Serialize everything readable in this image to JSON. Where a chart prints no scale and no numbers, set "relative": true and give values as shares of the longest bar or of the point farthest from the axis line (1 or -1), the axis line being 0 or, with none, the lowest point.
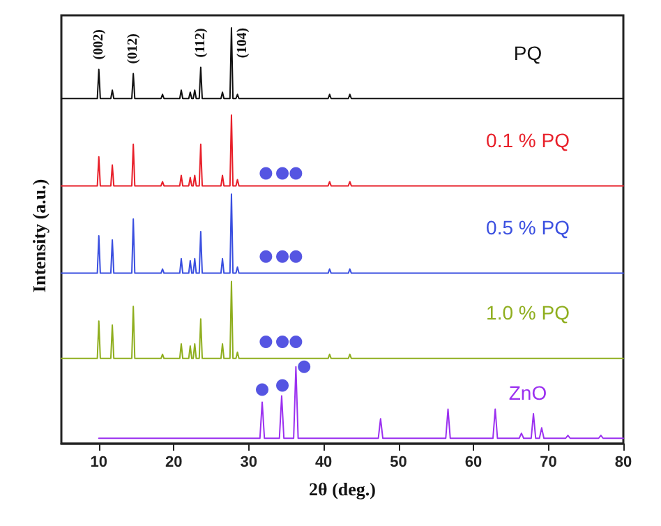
{
  "chart_data": {
    "type": "line",
    "xlabel": "2θ (deg.)",
    "ylabel": "Intensity (a.u.)",
    "relative": true,
    "xlim": [
      5,
      80
    ],
    "xticks": [
      10,
      20,
      30,
      40,
      50,
      60,
      70,
      80
    ],
    "tick_labels": "x",
    "marker": "none",
    "line_style": "solid",
    "annotations": [
      {
        "text": "(002)",
        "x": 10,
        "y": 0.9
      },
      {
        "text": "(012)",
        "x": 14.6,
        "y": 0.89
      },
      {
        "text": "(112)",
        "x": 23.6,
        "y": 0.905
      },
      {
        "text": "(104)",
        "x": 27.7,
        "y": 1
      }
    ],
    "series": [
      {
        "name": "PQ",
        "color": "#111111",
        "x": [
          5,
          9.8,
          10,
          10.2,
          11.6,
          11.8,
          12,
          14.4,
          14.6,
          14.8,
          18.3,
          18.5,
          18.7,
          20.8,
          21,
          21.2,
          22,
          22.2,
          22.4,
          22.6,
          22.8,
          23,
          23.4,
          23.6,
          23.8,
          26.3,
          26.5,
          26.7,
          27.5,
          27.7,
          27.9,
          28.3,
          28.5,
          28.7,
          40.6,
          40.8,
          41,
          43.3,
          43.5,
          43.7,
          80
        ],
        "values": [
          0.83,
          0.83,
          0.9,
          0.83,
          0.83,
          0.85,
          0.83,
          0.83,
          0.89,
          0.83,
          0.83,
          0.84,
          0.83,
          0.83,
          0.85,
          0.83,
          0.83,
          0.845,
          0.83,
          0.83,
          0.85,
          0.83,
          0.83,
          0.905,
          0.83,
          0.83,
          0.845,
          0.83,
          0.83,
          1,
          0.83,
          0.83,
          0.84,
          0.83,
          0.83,
          0.84,
          0.83,
          0.83,
          0.84,
          0.83,
          0.83
        ]
      },
      {
        "name": "0.1 % PQ",
        "color": "#e8202a",
        "x": [
          5,
          9.8,
          10,
          10.2,
          11.6,
          11.8,
          12,
          14.4,
          14.6,
          14.8,
          18.3,
          18.5,
          18.7,
          20.8,
          21,
          21.2,
          22,
          22.2,
          22.4,
          22.6,
          22.8,
          23,
          23.4,
          23.6,
          23.8,
          26.3,
          26.5,
          26.7,
          27.5,
          27.7,
          27.9,
          28.3,
          28.5,
          28.7,
          40.6,
          40.8,
          41,
          43.3,
          43.5,
          43.7,
          80
        ],
        "values": [
          0.62,
          0.62,
          0.69,
          0.62,
          0.62,
          0.67,
          0.62,
          0.62,
          0.72,
          0.62,
          0.62,
          0.63,
          0.62,
          0.62,
          0.645,
          0.62,
          0.62,
          0.64,
          0.62,
          0.62,
          0.645,
          0.62,
          0.62,
          0.72,
          0.62,
          0.62,
          0.645,
          0.62,
          0.62,
          0.79,
          0.62,
          0.62,
          0.635,
          0.62,
          0.62,
          0.63,
          0.62,
          0.62,
          0.63,
          0.62,
          0.62
        ]
      },
      {
        "name": "0.5 % PQ",
        "color": "#3a4fe0",
        "x": [
          5,
          9.8,
          10,
          10.2,
          11.6,
          11.8,
          12,
          14.4,
          14.6,
          14.8,
          18.3,
          18.5,
          18.7,
          20.8,
          21,
          21.2,
          22,
          22.2,
          22.4,
          22.6,
          22.8,
          23,
          23.4,
          23.6,
          23.8,
          26.3,
          26.5,
          26.7,
          27.5,
          27.7,
          27.9,
          28.3,
          28.5,
          28.7,
          40.6,
          40.8,
          41,
          43.3,
          43.5,
          43.7,
          80
        ],
        "values": [
          0.41,
          0.41,
          0.5,
          0.41,
          0.41,
          0.49,
          0.41,
          0.41,
          0.54,
          0.41,
          0.41,
          0.42,
          0.41,
          0.41,
          0.445,
          0.41,
          0.41,
          0.44,
          0.41,
          0.41,
          0.445,
          0.41,
          0.41,
          0.51,
          0.41,
          0.41,
          0.445,
          0.41,
          0.41,
          0.6,
          0.41,
          0.41,
          0.425,
          0.41,
          0.41,
          0.42,
          0.41,
          0.41,
          0.42,
          0.41,
          0.41
        ]
      },
      {
        "name": "1.0 % PQ",
        "color": "#8fae1e",
        "x": [
          5,
          9.8,
          10,
          10.2,
          11.6,
          11.8,
          12,
          14.4,
          14.6,
          14.8,
          18.3,
          18.5,
          18.7,
          20.8,
          21,
          21.2,
          22,
          22.2,
          22.4,
          22.6,
          22.8,
          23,
          23.4,
          23.6,
          23.8,
          26.3,
          26.5,
          26.7,
          27.5,
          27.7,
          27.9,
          28.3,
          28.5,
          28.7,
          40.6,
          40.8,
          41,
          43.3,
          43.5,
          43.7,
          80
        ],
        "values": [
          0.205,
          0.205,
          0.295,
          0.205,
          0.205,
          0.285,
          0.205,
          0.205,
          0.33,
          0.205,
          0.205,
          0.215,
          0.205,
          0.205,
          0.24,
          0.205,
          0.205,
          0.235,
          0.205,
          0.205,
          0.24,
          0.205,
          0.205,
          0.3,
          0.205,
          0.205,
          0.24,
          0.205,
          0.205,
          0.39,
          0.205,
          0.205,
          0.22,
          0.205,
          0.205,
          0.215,
          0.205,
          0.205,
          0.215,
          0.205,
          0.205
        ]
      },
      {
        "name": "ZnO",
        "color": "#9b30f0",
        "x": [
          10,
          31.5,
          31.8,
          32.1,
          34.1,
          34.4,
          34.7,
          36,
          36.3,
          36.6,
          47.3,
          47.6,
          47.9,
          56.3,
          56.6,
          56.9,
          62.6,
          62.9,
          63.2,
          66.1,
          66.4,
          66.7,
          67.7,
          68,
          68.3,
          68.8,
          69.1,
          69.4,
          72.3,
          72.6,
          72.9,
          76.7,
          77,
          77.3,
          80
        ],
        "values": [
          0.013,
          0.013,
          0.1,
          0.013,
          0.013,
          0.115,
          0.013,
          0.013,
          0.185,
          0.013,
          0.013,
          0.06,
          0.013,
          0.013,
          0.083,
          0.013,
          0.013,
          0.083,
          0.013,
          0.013,
          0.025,
          0.013,
          0.013,
          0.072,
          0.013,
          0.013,
          0.038,
          0.013,
          0.013,
          0.02,
          0.013,
          0.013,
          0.02,
          0.013,
          0.013
        ]
      },
      {
        "type": "scatter",
        "marker": "circle",
        "color": "#2b2bdb",
        "x": [
          32.3,
          34.5,
          36.3,
          32.3,
          34.5,
          36.3,
          32.3,
          34.5,
          36.3,
          31.8,
          34.5,
          37.4
        ],
        "values": [
          0.65,
          0.65,
          0.65,
          0.45,
          0.45,
          0.45,
          0.245,
          0.245,
          0.245,
          0.13,
          0.14,
          0.185
        ]
      }
    ]
  }
}
